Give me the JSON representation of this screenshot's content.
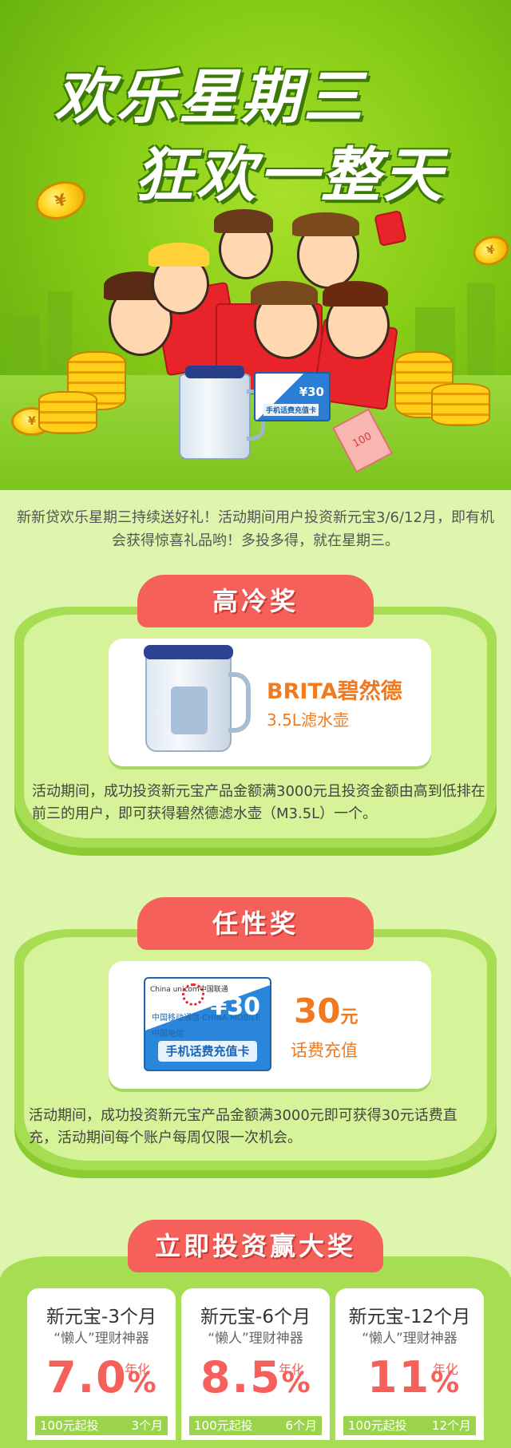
{
  "banner": {
    "title_line1": "欢乐星期三",
    "title_line2": "狂欢一整天",
    "card_price": "¥30",
    "card_label": "手机话费充值卡",
    "note_value": "100"
  },
  "intro": "新新贷欢乐星期三持续送好礼！活动期间用户投资新元宝3/6/12月，即有机会获得惊喜礼品哟！多投多得，就在星期三。",
  "prize1": {
    "tab": "高冷奖",
    "name": "BRITA碧然德",
    "sub": "3.5L滤水壶",
    "desc": "活动期间，成功投资新元宝产品金额满3000元且投资金额由高到低排在前三的用户，即可获得碧然德滤水壶（M3.5L）一个。"
  },
  "prize2": {
    "tab": "任性奖",
    "card_price": "¥30",
    "card_label": "手机话费充值卡",
    "card_unicom": "China unicom中国联通",
    "card_mobile": "中国移动通信 CHINA MOBILE",
    "card_telecom": "中国电信",
    "amount": "30",
    "amount_unit": "元",
    "amount_sub": "话费充值",
    "desc": "活动期间，成功投资新元宝产品金额满3000元即可获得30元话费直充，活动期间每个账户每周仅限一次机会。"
  },
  "invest_tab": "立即投资赢大奖",
  "products": [
    {
      "name": "新元宝-3个月",
      "tag": "“懒人”理财神器",
      "rate": "7.0",
      "pct": "%",
      "annual": "年化",
      "min": "100元起投",
      "term": "3个月"
    },
    {
      "name": "新元宝-6个月",
      "tag": "“懒人”理财神器",
      "rate": "8.5",
      "pct": "%",
      "annual": "年化",
      "min": "100元起投",
      "term": "6个月"
    },
    {
      "name": "新元宝-12个月",
      "tag": "“懒人”理财神器",
      "rate": "11",
      "pct": "%",
      "annual": "年化",
      "min": "100元起投",
      "term": "12个月"
    }
  ],
  "colors": {
    "background": "#ddf5ac",
    "panel": "#a6dd52",
    "tab": "#f5605a",
    "accent_orange": "#f07a20"
  }
}
